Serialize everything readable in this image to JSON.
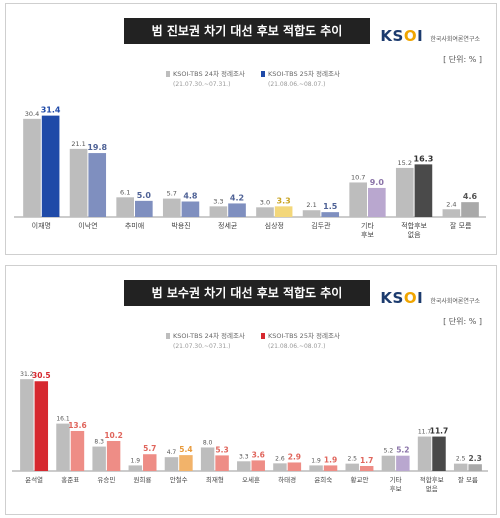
{
  "charts": [
    {
      "title": "범 진보권 차기 대선 후보 적합도 추이",
      "logo": "KSOI",
      "logo_sub": "한국사회여론연구소",
      "unit": "[ 단위: % ]",
      "legend": [
        {
          "label": "KSOI-TBS 24차 정례조사",
          "period": "(21.07.30.~07.31.)"
        },
        {
          "label": "KSOI-TBS 25차 정례조사",
          "period": "(21.08.06.~08.07.)"
        }
      ]
    },
    {
      "title": "범 보수권 차기 대선 후보 적합도 추이",
      "logo": "KSOI",
      "logo_sub": "한국사회여론연구소",
      "unit": "[ 단위: % ]",
      "legend": [
        {
          "label": "KSOI-TBS 24차 정례조사",
          "period": "(21.07.30.~07.31.)"
        },
        {
          "label": "KSOI-TBS 25차 정례조사",
          "period": "(21.08.06.~08.07.)"
        }
      ]
    }
  ],
  "chart_data": [
    {
      "type": "bar",
      "title": "범 진보권 차기 대선 후보 적합도 추이",
      "categories": [
        "이재명",
        "이낙연",
        "추미애",
        "박용진",
        "정세균",
        "심상정",
        "김두관",
        "기타 후보",
        "적합후보 없음",
        "잘 모름"
      ],
      "series": [
        {
          "name": "KSOI-TBS 24차 정례조사",
          "values": [
            30.4,
            21.1,
            6.1,
            5.7,
            3.3,
            3.0,
            2.1,
            10.7,
            15.2,
            2.4
          ]
        },
        {
          "name": "KSOI-TBS 25차 정례조사",
          "values": [
            31.4,
            19.8,
            5.0,
            4.8,
            4.2,
            3.3,
            1.5,
            9.0,
            16.3,
            4.6
          ]
        }
      ],
      "series_colors": [
        [
          "#bdbdbd",
          "#bdbdbd",
          "#bdbdbd",
          "#bdbdbd",
          "#bdbdbd",
          "#bdbdbd",
          "#bdbdbd",
          "#bdbdbd",
          "#bdbdbd",
          "#bdbdbd"
        ],
        [
          "#1f4aa8",
          "#7f8fbf",
          "#7f8fbf",
          "#7f8fbf",
          "#7f8fbf",
          "#f3d77a",
          "#7f8fbf",
          "#b9a7cf",
          "#4a4a4a",
          "#a9a9a9"
        ]
      ],
      "label_colors": [
        [
          "#555555",
          "#555555",
          "#555555",
          "#555555",
          "#555555",
          "#555555",
          "#555555",
          "#555555",
          "#555555",
          "#555555"
        ],
        [
          "#1f4aa8",
          "#4f6296",
          "#4f6296",
          "#4f6296",
          "#4f6296",
          "#c9a424",
          "#4f6296",
          "#8a73a8",
          "#333333",
          "#555555"
        ]
      ],
      "ylim": [
        0,
        35
      ]
    },
    {
      "type": "bar",
      "title": "범 보수권 차기 대선 후보 적합도 추이",
      "categories": [
        "윤석열",
        "홍준표",
        "유승민",
        "원희룡",
        "안철수",
        "최재형",
        "오세훈",
        "하태경",
        "윤희숙",
        "황교안",
        "기타 후보",
        "적합후보 없음",
        "잘 모름"
      ],
      "series": [
        {
          "name": "KSOI-TBS 24차 정례조사",
          "values": [
            31.2,
            16.1,
            8.3,
            1.9,
            4.7,
            8.0,
            3.3,
            2.6,
            1.9,
            2.5,
            5.2,
            11.7,
            2.5
          ]
        },
        {
          "name": "KSOI-TBS 25차 정례조사",
          "values": [
            30.5,
            13.6,
            10.2,
            5.7,
            5.4,
            5.3,
            3.6,
            2.9,
            1.9,
            1.7,
            5.2,
            11.7,
            2.3
          ]
        }
      ],
      "series_colors": [
        [
          "#bdbdbd",
          "#bdbdbd",
          "#bdbdbd",
          "#bdbdbd",
          "#bdbdbd",
          "#bdbdbd",
          "#bdbdbd",
          "#bdbdbd",
          "#bdbdbd",
          "#bdbdbd",
          "#bdbdbd",
          "#bdbdbd",
          "#bdbdbd"
        ],
        [
          "#d6282f",
          "#ee8d86",
          "#ee8d86",
          "#ee8d86",
          "#f2b36a",
          "#ee8d86",
          "#ee8d86",
          "#ee8d86",
          "#ee8d86",
          "#ee8d86",
          "#b9a7cf",
          "#4a4a4a",
          "#a9a9a9"
        ]
      ],
      "label_colors": [
        [
          "#555555",
          "#555555",
          "#555555",
          "#555555",
          "#555555",
          "#555555",
          "#555555",
          "#555555",
          "#555555",
          "#555555",
          "#555555",
          "#555555",
          "#555555"
        ],
        [
          "#d6282f",
          "#e0655c",
          "#e0655c",
          "#e0655c",
          "#e89a3c",
          "#e0655c",
          "#e0655c",
          "#e0655c",
          "#e0655c",
          "#e0655c",
          "#8a73a8",
          "#333333",
          "#555555"
        ]
      ],
      "ylim": [
        0,
        35
      ]
    }
  ]
}
